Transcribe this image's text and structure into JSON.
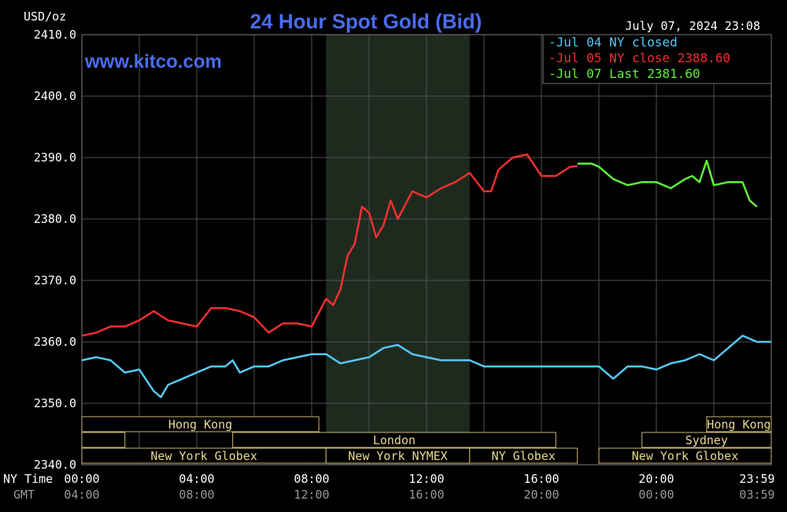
{
  "header": {
    "unit_label": "USD/oz",
    "title": "24 Hour Spot Gold (Bid)",
    "datestamp": "July 07, 2024 23:08",
    "website": "www.kitco.com"
  },
  "axis": {
    "time_row_label": "NY Time",
    "gmt_row_label": "GMT"
  },
  "colors": {
    "background": "#000000",
    "grid": "#505050",
    "session_shade": "#1f2a1f",
    "jul04": "#55c8f5",
    "jul05": "#f03030",
    "jul07": "#60ee3c",
    "title": "#4a6cf0",
    "session_text": "#e8d890",
    "session_border": "#c8b874"
  },
  "chart_data": {
    "type": "line",
    "title": "24 Hour Spot Gold (Bid)",
    "ylabel": "USD/oz",
    "ylim": [
      2340,
      2410
    ],
    "y_ticks": [
      "2410.0",
      "2400.0",
      "2390.0",
      "2380.0",
      "2370.0",
      "2360.0",
      "2350.0",
      "2340.0"
    ],
    "xlim": [
      0,
      24
    ],
    "x_ticks": [
      {
        "ny": "00:00",
        "gmt": "04:00"
      },
      {
        "ny": "04:00",
        "gmt": "08:00"
      },
      {
        "ny": "08:00",
        "gmt": "12:00"
      },
      {
        "ny": "12:00",
        "gmt": "16:00"
      },
      {
        "ny": "16:00",
        "gmt": "20:00"
      },
      {
        "ny": "20:00",
        "gmt": "00:00"
      },
      {
        "ny": "23:59",
        "gmt": "03:59"
      }
    ],
    "grid": true,
    "legend_position": "top-right",
    "shaded_session": {
      "start": 8.5,
      "end": 13.5
    },
    "series": [
      {
        "name": "Jul 04 NY closed",
        "x": [
          0,
          0.5,
          1.0,
          1.5,
          2.0,
          2.5,
          2.75,
          3.0,
          3.5,
          4.0,
          4.5,
          5.0,
          5.25,
          5.5,
          6.0,
          6.5,
          7.0,
          7.5,
          8.0,
          8.5,
          9.0,
          9.5,
          10.0,
          10.5,
          11.0,
          11.5,
          12.0,
          12.5,
          13.0,
          13.5,
          14.0,
          14.5,
          15.0,
          16.0,
          17.0,
          18.0,
          18.5,
          19.0,
          19.5,
          20.0,
          20.5,
          21.0,
          21.5,
          22.0,
          22.5,
          23.0,
          23.5,
          24.0
        ],
        "y": [
          2357,
          2357.5,
          2357,
          2355,
          2355.5,
          2352,
          2351,
          2353,
          2354,
          2355,
          2356,
          2356,
          2357,
          2355,
          2356,
          2356,
          2357,
          2357.5,
          2358,
          2358,
          2356.5,
          2357,
          2357.5,
          2359,
          2359.5,
          2358,
          2357.5,
          2357,
          2357,
          2357,
          2356,
          2356,
          2356,
          2356,
          2356,
          2356,
          2354,
          2356,
          2356,
          2355.5,
          2356.5,
          2357,
          2358,
          2357,
          2359,
          2361,
          2360,
          2360
        ]
      },
      {
        "name": "Jul 05 NY close 2388.60",
        "x": [
          0,
          0.5,
          1.0,
          1.5,
          2.0,
          2.5,
          3.0,
          3.5,
          4.0,
          4.5,
          5.0,
          5.5,
          6.0,
          6.5,
          7.0,
          7.5,
          8.0,
          8.5,
          8.75,
          9.0,
          9.25,
          9.5,
          9.75,
          10.0,
          10.25,
          10.5,
          10.75,
          11.0,
          11.5,
          12.0,
          12.5,
          13.0,
          13.5,
          14.0,
          14.25,
          14.5,
          15.0,
          15.5,
          16.0,
          16.5,
          17.0,
          17.25
        ],
        "y": [
          2361,
          2361.5,
          2362.5,
          2362.5,
          2363.5,
          2365,
          2363.5,
          2363,
          2362.5,
          2365.5,
          2365.5,
          2365,
          2364,
          2361.5,
          2363,
          2363,
          2362.5,
          2367,
          2366,
          2368.5,
          2374,
          2376,
          2382,
          2381,
          2377,
          2379,
          2383,
          2380,
          2384.5,
          2383.5,
          2385,
          2386,
          2387.5,
          2384.5,
          2384.5,
          2388,
          2390,
          2390.5,
          2387,
          2387,
          2388.5,
          2388.6
        ]
      },
      {
        "name": "Jul 07 Last 2381.60",
        "x": [
          17.25,
          17.75,
          18.0,
          18.25,
          18.5,
          19.0,
          19.5,
          20.0,
          20.5,
          21.0,
          21.25,
          21.5,
          21.75,
          22.0,
          22.5,
          23.0,
          23.25,
          23.5
        ],
        "y": [
          2389,
          2389,
          2388.5,
          2387.5,
          2386.5,
          2385.5,
          2386,
          2386,
          2385,
          2386.5,
          2387,
          2386,
          2389.5,
          2385.5,
          2386,
          2386,
          2383,
          2382
        ]
      }
    ],
    "session_labels": [
      {
        "row": 1,
        "label": "Hong Kong",
        "start": 0,
        "end": 8.25
      },
      {
        "row": 1,
        "label": "Hong Kong",
        "start": 21.75,
        "end": 24
      },
      {
        "row": 2,
        "label": "",
        "start": 0,
        "end": 1.5
      },
      {
        "row": 2,
        "label": "London",
        "start": 5.25,
        "end": 16.5
      },
      {
        "row": 2,
        "label": "Sydney",
        "start": 19.5,
        "end": 24
      },
      {
        "row": 3,
        "label": "New York Globex",
        "start": 0,
        "end": 8.5
      },
      {
        "row": 3,
        "label": "New York NYMEX",
        "start": 8.5,
        "end": 13.5
      },
      {
        "row": 3,
        "label": "NY Globex",
        "start": 13.5,
        "end": 17.25
      },
      {
        "row": 3,
        "label": "New York Globex",
        "start": 18.0,
        "end": 24
      }
    ]
  }
}
